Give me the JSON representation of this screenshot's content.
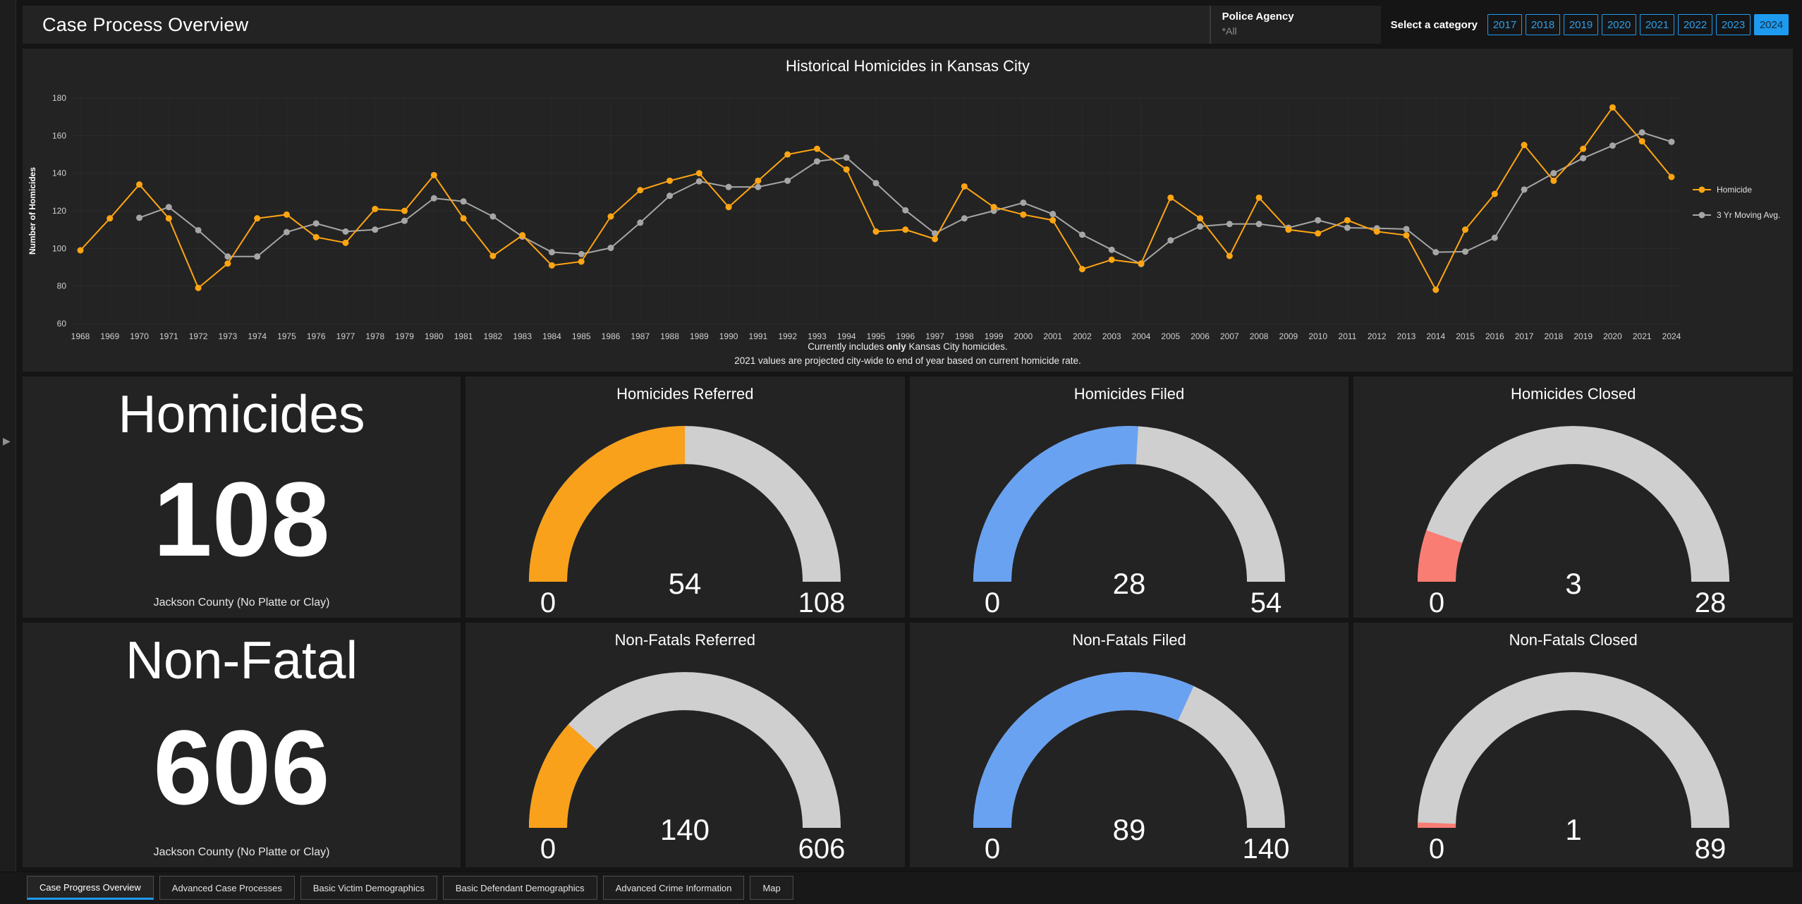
{
  "header": {
    "title": "Case Process Overview",
    "police_agency": {
      "label": "Police Agency",
      "value": "*All"
    },
    "category": {
      "label": "Select a category",
      "years": [
        "2017",
        "2018",
        "2019",
        "2020",
        "2021",
        "2022",
        "2023",
        "2024"
      ],
      "selected": "2024"
    }
  },
  "chart_data": [
    {
      "type": "line",
      "title": "Historical Homicides in Kansas City",
      "xlabel": "",
      "ylabel": "Number of Homicides",
      "ylim": [
        60,
        180
      ],
      "yticks": [
        60,
        80,
        100,
        120,
        140,
        160,
        180
      ],
      "grid": true,
      "legend_position": "right",
      "categories": [
        "1968",
        "1969",
        "1970",
        "1971",
        "1972",
        "1973",
        "1974",
        "1975",
        "1976",
        "1977",
        "1978",
        "1979",
        "1980",
        "1981",
        "1982",
        "1983",
        "1984",
        "1985",
        "1986",
        "1987",
        "1988",
        "1989",
        "1990",
        "1991",
        "1992",
        "1993",
        "1994",
        "1995",
        "1996",
        "1997",
        "1998",
        "1999",
        "2000",
        "2001",
        "2002",
        "2003",
        "2004",
        "2005",
        "2006",
        "2007",
        "2008",
        "2009",
        "2010",
        "2011",
        "2012",
        "2013",
        "2014",
        "2015",
        "2016",
        "2017",
        "2018",
        "2019",
        "2020",
        "2021",
        "2024"
      ],
      "series": [
        {
          "name": "Homicide",
          "color": "#FFA513",
          "values": [
            99,
            116,
            134,
            116,
            79,
            92,
            116,
            118,
            106,
            103,
            121,
            120,
            139,
            116,
            96,
            107,
            91,
            93,
            117,
            131,
            136,
            140,
            122,
            136,
            150,
            153,
            142,
            109,
            110,
            105,
            133,
            122,
            118,
            115,
            89,
            94,
            92,
            127,
            116,
            96,
            127,
            110,
            108,
            115,
            109,
            107,
            78,
            110,
            129,
            155,
            136,
            153,
            175,
            157,
            138
          ]
        },
        {
          "name": "3 Yr Moving Avg.",
          "color": "#A6A6A6",
          "values": [
            null,
            null,
            116.3,
            122,
            109.7,
            95.7,
            95.7,
            108.7,
            113.3,
            109,
            110,
            114.7,
            126.7,
            125,
            117,
            106.3,
            98,
            97,
            100.3,
            113.7,
            128,
            135.7,
            132.7,
            132.7,
            136,
            146.3,
            148.3,
            134.7,
            120.3,
            108,
            116,
            120,
            124.3,
            118.3,
            107.3,
            99.3,
            91.7,
            104.3,
            111.7,
            113,
            113,
            111,
            115,
            111,
            110.7,
            110.3,
            98,
            98.3,
            105.7,
            131.3,
            140,
            148,
            154.7,
            161.7,
            156.7
          ]
        }
      ],
      "notes": {
        "line1_prefix": "Currently includes ",
        "line1_bold": "only",
        "line1_suffix": " Kansas City homicides.",
        "line2": "2021 values are projected city-wide to end of year based on current homicide rate."
      }
    },
    {
      "type": "gauge",
      "title": "Homicides Referred",
      "min": 0,
      "max": 108,
      "value": 54,
      "color": "#F9A11B",
      "track_color": "#CFCFCF"
    },
    {
      "type": "gauge",
      "title": "Homicides Filed",
      "min": 0,
      "max": 54,
      "value": 28,
      "color": "#69A2F1",
      "track_color": "#CFCFCF"
    },
    {
      "type": "gauge",
      "title": "Homicides Closed",
      "min": 0,
      "max": 28,
      "value": 3,
      "color": "#F97D73",
      "track_color": "#CFCFCF"
    },
    {
      "type": "gauge",
      "title": "Non-Fatals Referred",
      "min": 0,
      "max": 606,
      "value": 140,
      "color": "#F9A11B",
      "track_color": "#CFCFCF"
    },
    {
      "type": "gauge",
      "title": "Non-Fatals Filed",
      "min": 0,
      "max": 140,
      "value": 89,
      "color": "#69A2F1",
      "track_color": "#CFCFCF"
    },
    {
      "type": "gauge",
      "title": "Non-Fatals Closed",
      "min": 0,
      "max": 89,
      "value": 1,
      "color": "#F97D73",
      "track_color": "#CFCFCF"
    }
  ],
  "stats": [
    {
      "title": "Homicides",
      "value": "108",
      "subtitle": "Jackson County (No Platte or Clay)"
    },
    {
      "title": "Non-Fatal",
      "value": "606",
      "subtitle": "Jackson County (No Platte or Clay)"
    }
  ],
  "tabs": {
    "items": [
      "Case Progress Overview",
      "Advanced Case Processes",
      "Basic Victim Demographics",
      "Basic Defendant Demographics",
      "Advanced Crime Information",
      "Map"
    ],
    "active": "Case Progress Overview"
  },
  "colors": {
    "page_bg": "#151515",
    "panel_bg": "#232323",
    "accent_blue": "#1E9BF0",
    "homicide_orange": "#FFA513",
    "moving_avg_gray": "#A6A6A6",
    "gauge_track": "#CFCFCF",
    "gauge_red": "#F97D73",
    "gauge_blue": "#69A2F1",
    "gauge_orange": "#F9A11B"
  }
}
